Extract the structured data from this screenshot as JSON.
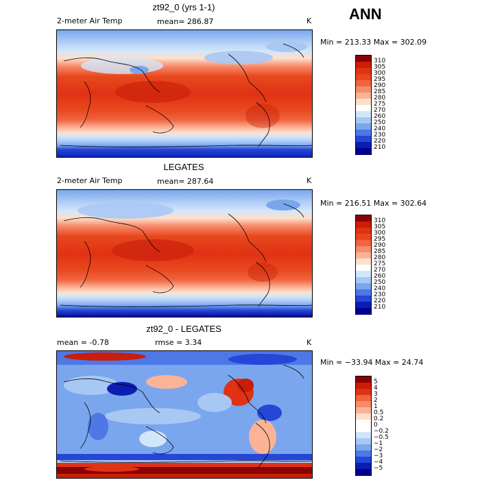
{
  "season_label": "ANN",
  "panels": [
    {
      "title": "zt92_0 (yrs 1-1)",
      "variable_label": "2-meter Air Temp",
      "mean_label": "mean= 286.87",
      "unit": "K",
      "minmax": "Min = 213.33 Max = 302.09",
      "levels": [
        "310",
        "305",
        "300",
        "295",
        "290",
        "285",
        "280",
        "275",
        "270",
        "260",
        "250",
        "240",
        "230",
        "220",
        "210"
      ],
      "colors": [
        "#8b0000",
        "#c81e0a",
        "#e03214",
        "#e8481e",
        "#f06440",
        "#f78c6c",
        "#fbb396",
        "#fde0cc",
        "#ffffff",
        "#d2e6fb",
        "#a8c8f4",
        "#7aa6ee",
        "#4d78e6",
        "#2546d6",
        "#0a1eb4",
        "#00008b"
      ]
    },
    {
      "title": "LEGATES",
      "variable_label": "2-meter Air Temp",
      "mean_label": "mean= 287.64",
      "unit": "K",
      "minmax": "Min = 216.51 Max = 302.64",
      "levels": [
        "310",
        "305",
        "300",
        "295",
        "290",
        "285",
        "280",
        "275",
        "270",
        "260",
        "250",
        "240",
        "230",
        "220",
        "210"
      ],
      "colors": [
        "#8b0000",
        "#c81e0a",
        "#e03214",
        "#e8481e",
        "#f06440",
        "#f78c6c",
        "#fbb396",
        "#fde0cc",
        "#ffffff",
        "#d2e6fb",
        "#a8c8f4",
        "#7aa6ee",
        "#4d78e6",
        "#2546d6",
        "#0a1eb4",
        "#00008b"
      ]
    },
    {
      "title": "zt92_0 - LEGATES",
      "variable_label": "mean =   -0.78",
      "mean_label": "rmse =    3.34",
      "unit": "K",
      "minmax": "Min = −33.94 Max =  24.74",
      "levels": [
        "5",
        "4",
        "3",
        "2",
        "1",
        "0.5",
        "0.2",
        "0",
        "−0.2",
        "−0.5",
        "−1",
        "−2",
        "−3",
        "−4",
        "−5"
      ],
      "colors": [
        "#8b0000",
        "#c81e0a",
        "#e03214",
        "#f06440",
        "#f78c6c",
        "#fbb396",
        "#fde0cc",
        "#ffffff",
        "#ffffff",
        "#d2e6fb",
        "#a8c8f4",
        "#7aa6ee",
        "#4d78e6",
        "#2546d6",
        "#0a1eb4",
        "#00008b"
      ]
    }
  ]
}
